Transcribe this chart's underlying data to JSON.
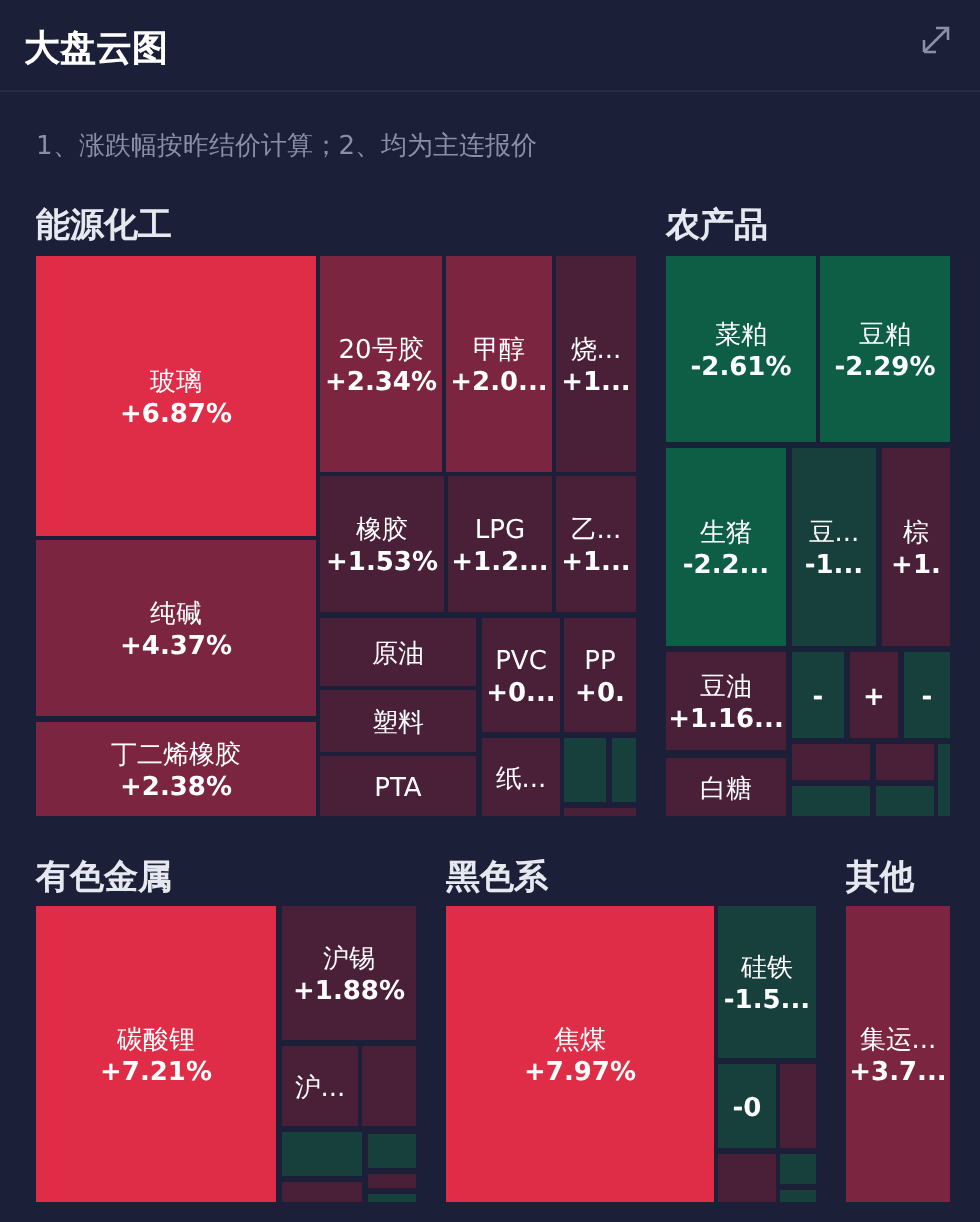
{
  "chart_data": [
    {
      "type": "other",
      "title": "大盘云图",
      "subtitle": "1、涨跌幅按昨结价计算；2、均为主连报价"
    },
    {
      "type": "other",
      "title": "能源化工",
      "categories": [
        "玻璃",
        "纯碱",
        "丁二烯橡胶",
        "20号胶",
        "甲醇",
        "烧...",
        "橡胶",
        "LPG",
        "乙...",
        "原油",
        "塑料",
        "PTA",
        "PVC",
        "PP",
        "纸...",
        null,
        null,
        null
      ],
      "values": [
        6.87,
        4.37,
        2.38,
        2.34,
        null,
        null,
        1.53,
        null,
        null,
        null,
        null,
        null,
        null,
        null,
        null,
        null,
        null,
        null
      ],
      "value_labels": [
        "+6.87%",
        "+4.37%",
        "+2.38%",
        "+2.34%",
        "+2.0...",
        "+1...",
        "+1.53%",
        "+1.2...",
        "+1...",
        null,
        null,
        null,
        "+0...",
        "+0.",
        null,
        null,
        null,
        null
      ],
      "colors": [
        "#e02d47",
        "#7b2540",
        "#7b2540",
        "#7b2540",
        "#7b2540",
        "#4a2039",
        "#4a2039",
        "#4a2039",
        "#4a2039",
        "#4a2039",
        "#4a2039",
        "#4a2039",
        "#4a2039",
        "#4a2039",
        "#4a2039",
        "#173f3b",
        "#173f3b",
        "#4a2039"
      ]
    },
    {
      "type": "other",
      "title": "农产品",
      "categories": [
        "菜粕",
        "豆粕",
        "生猪",
        "豆...",
        "棕",
        "豆油",
        "白糖",
        null,
        null,
        null,
        null,
        null,
        null,
        null,
        null
      ],
      "values": [
        -2.61,
        -2.29,
        null,
        null,
        null,
        null,
        null,
        null,
        null,
        null,
        null,
        null,
        null,
        null,
        null
      ],
      "value_labels": [
        "-2.61%",
        "-2.29%",
        "-2.2...",
        "-1...",
        "+1.",
        "+1.16...",
        null,
        "-",
        "+",
        "-",
        null,
        null,
        null,
        null,
        null
      ],
      "colors": [
        "#0e5e45",
        "#0e5e45",
        "#0e5e45",
        "#173f3b",
        "#4a2039",
        "#4a2039",
        "#4a2039",
        "#173f3b",
        "#4a2039",
        "#173f3b",
        "#4a2039",
        "#4a2039",
        "#173f3b",
        "#173f3b",
        "#173f3b"
      ]
    },
    {
      "type": "other",
      "title": "有色金属",
      "categories": [
        "碳酸锂",
        "沪锡",
        "沪...",
        null,
        null,
        null,
        null,
        null,
        null
      ],
      "values": [
        7.21,
        1.88,
        null,
        null,
        null,
        null,
        null,
        null,
        null
      ],
      "value_labels": [
        "+7.21%",
        "+1.88%",
        null,
        null,
        null,
        null,
        null,
        null,
        null
      ],
      "colors": [
        "#e02d47",
        "#4a2039",
        "#4a2039",
        "#4a2039",
        "#173f3b",
        "#173f3b",
        "#4a2039",
        "#173f3b",
        "#4a2039"
      ]
    },
    {
      "type": "other",
      "title": "黑色系",
      "categories": [
        "焦煤",
        "硅铁",
        null,
        null,
        null,
        null,
        null
      ],
      "values": [
        7.97,
        null,
        null,
        null,
        null,
        null,
        null
      ],
      "value_labels": [
        "+7.97%",
        "-1.5...",
        "-0",
        null,
        null,
        null,
        null
      ],
      "colors": [
        "#e02d47",
        "#173f3b",
        "#173f3b",
        "#4a2039",
        "#4a2039",
        "#173f3b",
        "#173f3b"
      ]
    },
    {
      "type": "other",
      "title": "其他",
      "categories": [
        "集运..."
      ],
      "values": [
        null
      ],
      "value_labels": [
        "+3.7..."
      ],
      "colors": [
        "#7b2540"
      ]
    }
  ]
}
